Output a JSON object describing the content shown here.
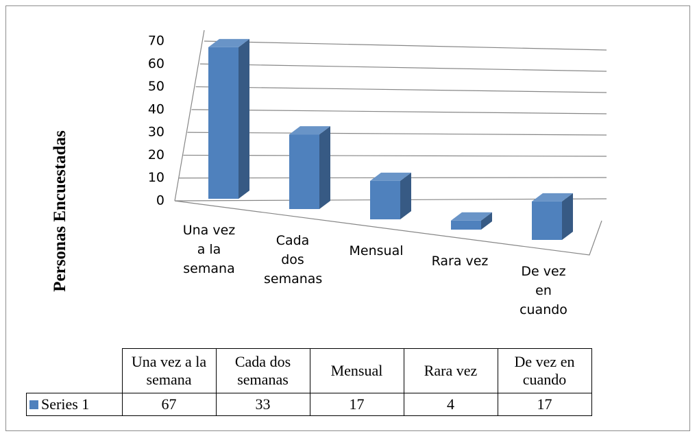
{
  "chart_data": {
    "type": "bar3d",
    "y_label": "Personas Encuestadas",
    "categories": [
      "Una vez a la semana",
      "Cada dos semanas",
      "Mensual",
      "Rara vez",
      "De vez en cuando"
    ],
    "series": [
      {
        "name": "Series 1",
        "color": "#4f81bd",
        "values": [
          67,
          33,
          17,
          4,
          17
        ]
      }
    ],
    "ylim": [
      0,
      70
    ],
    "yticks": [
      0,
      10,
      20,
      30,
      40,
      50,
      60,
      70
    ],
    "grid": true
  }
}
